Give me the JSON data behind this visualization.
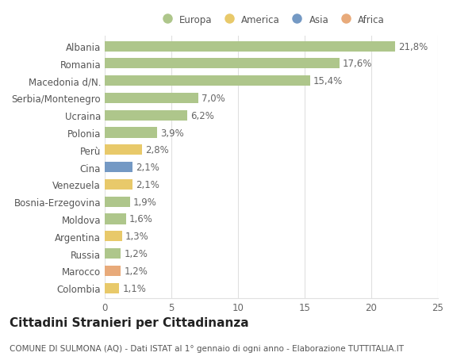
{
  "countries": [
    "Albania",
    "Romania",
    "Macedonia d/N.",
    "Serbia/Montenegro",
    "Ucraina",
    "Polonia",
    "Perù",
    "Cina",
    "Venezuela",
    "Bosnia-Erzegovina",
    "Moldova",
    "Argentina",
    "Russia",
    "Marocco",
    "Colombia"
  ],
  "values": [
    21.8,
    17.6,
    15.4,
    7.0,
    6.2,
    3.9,
    2.8,
    2.1,
    2.1,
    1.9,
    1.6,
    1.3,
    1.2,
    1.2,
    1.1
  ],
  "labels": [
    "21,8%",
    "17,6%",
    "15,4%",
    "7,0%",
    "6,2%",
    "3,9%",
    "2,8%",
    "2,1%",
    "2,1%",
    "1,9%",
    "1,6%",
    "1,3%",
    "1,2%",
    "1,2%",
    "1,1%"
  ],
  "continents": [
    "Europa",
    "Europa",
    "Europa",
    "Europa",
    "Europa",
    "Europa",
    "America",
    "Asia",
    "America",
    "Europa",
    "Europa",
    "America",
    "Europa",
    "Africa",
    "America"
  ],
  "colors": {
    "Europa": "#aec68b",
    "America": "#e8c96a",
    "Asia": "#7499c4",
    "Africa": "#e8aa7a"
  },
  "xlim": [
    0,
    25
  ],
  "xticks": [
    0,
    5,
    10,
    15,
    20,
    25
  ],
  "background_color": "#ffffff",
  "grid_color": "#e0e0e0",
  "title": "Cittadini Stranieri per Cittadinanza",
  "subtitle": "COMUNE DI SULMONA (AQ) - Dati ISTAT al 1° gennaio di ogni anno - Elaborazione TUTTITALIA.IT",
  "bar_height": 0.6,
  "label_fontsize": 8.5,
  "tick_fontsize": 8.5,
  "title_fontsize": 11,
  "subtitle_fontsize": 7.5,
  "legend_order": [
    "Europa",
    "America",
    "Asia",
    "Africa"
  ]
}
